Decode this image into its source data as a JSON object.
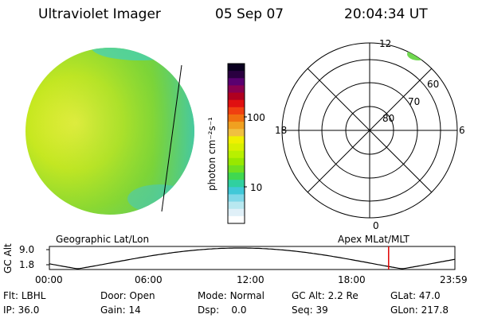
{
  "header": {
    "instrument": "Ultraviolet Imager",
    "date": "05 Sep 07",
    "time": "20:04:34 UT"
  },
  "colorbar": {
    "unit_label": "photon cm⁻²s⁻¹",
    "ticks": [
      "100",
      "10"
    ],
    "colors": [
      "#0a0020",
      "#2a0040",
      "#5a0070",
      "#8a0050",
      "#b00020",
      "#e01010",
      "#f04010",
      "#f07010",
      "#f0a020",
      "#f0c040",
      "#f0f000",
      "#d8f000",
      "#b8f000",
      "#98e800",
      "#70e020",
      "#40d850",
      "#30d0a0",
      "#40c8d8",
      "#80d8e8",
      "#b8e8f0",
      "#e0f0f8",
      "#ffffff"
    ]
  },
  "left_label": "Geographic Lat/Lon",
  "right_label": "Apex MLat/MLT",
  "polar": {
    "mlt_labels": {
      "top": "12",
      "right": "6",
      "bottom": "0",
      "left": "18"
    },
    "lat_labels": [
      "60",
      "70",
      "80"
    ]
  },
  "altitude_plot": {
    "ylabel": "GC Alt",
    "y_ticks": [
      "9.0",
      "1.8"
    ],
    "x_ticks": [
      "00:00",
      "06:00",
      "12:00",
      "18:00",
      "23:59"
    ],
    "current_time_fraction": 0.8365,
    "marker_color": "#e00000"
  },
  "status": {
    "row1": [
      {
        "label": "Flt:",
        "value": "LBHL"
      },
      {
        "label": "Door:",
        "value": "Open"
      },
      {
        "label": "Mode:",
        "value": "Normal"
      },
      {
        "label": "GC Alt:",
        "value": "2.2 Re"
      },
      {
        "label": "GLat:",
        "value": "47.0"
      }
    ],
    "row2": [
      {
        "label": "IP:",
        "value": "36.0"
      },
      {
        "label": "Gain:",
        "value": "14"
      },
      {
        "label": "Dsp:",
        "value": "0.0"
      },
      {
        "label": "Seq:",
        "value": "39"
      },
      {
        "label": "GLon:",
        "value": "217.8"
      }
    ]
  }
}
